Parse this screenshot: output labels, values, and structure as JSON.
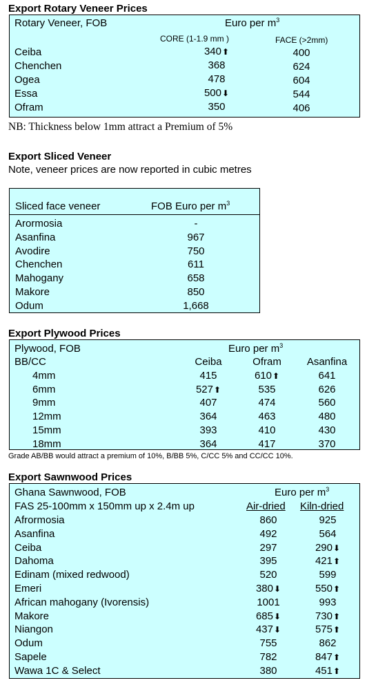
{
  "rotary": {
    "heading": "Export Rotary Veneer Prices",
    "label": "Rotary Veneer,  FOB",
    "unit_prefix": "Euro  per m",
    "unit_sup": "3",
    "col1": "CORE (1-1.9 mm )",
    "col2": "FACE (>2mm)",
    "rows": [
      {
        "name": "Ceiba",
        "core": "340",
        "core_arrow": "up",
        "face": "400"
      },
      {
        "name": "Chenchen",
        "core": "368",
        "core_arrow": "",
        "face": "624"
      },
      {
        "name": "Ogea",
        "core": "478",
        "core_arrow": "",
        "face": "604"
      },
      {
        "name": "Essa",
        "core": "500",
        "core_arrow": "down",
        "face": "544"
      },
      {
        "name": "Ofram",
        "core": "350",
        "core_arrow": "",
        "face": "406"
      }
    ],
    "note": "NB: Thickness below 1mm attract a Premium of 5%"
  },
  "sliced": {
    "heading": "Export Sliced Veneer",
    "subnote": "Note, veneer prices are now reported in cubic metres",
    "label": "Sliced face veneer",
    "unit_prefix": "FOB Euro per m",
    "unit_sup": "3",
    "rows": [
      {
        "name": "Arormosia",
        "price": "-"
      },
      {
        "name": "Asanfina",
        "price": "967"
      },
      {
        "name": "Avodire",
        "price": "750"
      },
      {
        "name": "Chenchen",
        "price": "611"
      },
      {
        "name": "Mahogany",
        "price": "658"
      },
      {
        "name": "Makore",
        "price": "850"
      },
      {
        "name": "Odum",
        "price": "1,668"
      }
    ]
  },
  "plywood": {
    "heading": "Export Plywood Prices",
    "label": "Plywood, FOB",
    "sub_label": "BB/CC",
    "unit_prefix": "Euro per m",
    "unit_sup": "3",
    "cols": [
      "Ceiba",
      "Ofram",
      "Asanfina"
    ],
    "rows": [
      {
        "size": "4mm",
        "v": [
          "415",
          "610",
          "641"
        ],
        "a": [
          "",
          "up",
          ""
        ]
      },
      {
        "size": "6mm",
        "v": [
          "527",
          "535",
          "626"
        ],
        "a": [
          "up",
          "",
          ""
        ]
      },
      {
        "size": "9mm",
        "v": [
          "407",
          "474",
          "560"
        ],
        "a": [
          "",
          "",
          ""
        ]
      },
      {
        "size": "12mm",
        "v": [
          "364",
          "463",
          "480"
        ],
        "a": [
          "",
          "",
          ""
        ]
      },
      {
        "size": "15mm",
        "v": [
          "393",
          "410",
          "430"
        ],
        "a": [
          "",
          "",
          ""
        ]
      },
      {
        "size": "18mm",
        "v": [
          "364",
          "417",
          "370"
        ],
        "a": [
          "",
          "",
          ""
        ]
      }
    ],
    "note": "Grade AB/BB would attract a premium of 10%, B/BB 5%, C/CC 5% and CC/CC 10%."
  },
  "sawn": {
    "heading": "Export Sawnwood Prices",
    "label": "Ghana Sawnwood, FOB",
    "spec": "FAS 25-100mm x 150mm up x 2.4m up",
    "unit_prefix": "Euro per m",
    "unit_sup": "3",
    "col1": "Air-dried",
    "col2": "Kiln-dried",
    "rows": [
      {
        "name": "Afrormosia",
        "air": "860",
        "air_a": "",
        "kiln": "925",
        "kiln_a": ""
      },
      {
        "name": "Asanfina",
        "air": "492",
        "air_a": "",
        "kiln": "564",
        "kiln_a": ""
      },
      {
        "name": "Ceiba",
        "air": "297",
        "air_a": "",
        "kiln": "290",
        "kiln_a": "down"
      },
      {
        "name": "Dahoma",
        "air": "395",
        "air_a": "",
        "kiln": "421",
        "kiln_a": "up"
      },
      {
        "name": "Edinam (mixed redwood)",
        "air": "520",
        "air_a": "",
        "kiln": "599",
        "kiln_a": ""
      },
      {
        "name": "Emeri",
        "air": "380",
        "air_a": "down",
        "kiln": "550",
        "kiln_a": "up"
      },
      {
        "name": "African mahogany (Ivorensis)",
        "air": "1001",
        "air_a": "",
        "kiln": "993",
        "kiln_a": ""
      },
      {
        "name": "Makore",
        "air": "685",
        "air_a": "down",
        "kiln": "730",
        "kiln_a": "up"
      },
      {
        "name": "Niangon",
        "air": "437",
        "air_a": "down",
        "kiln": "575",
        "kiln_a": "up"
      },
      {
        "name": "Odum",
        "air": "755",
        "air_a": "",
        "kiln": "862",
        "kiln_a": ""
      },
      {
        "name": "Sapele",
        "air": "782",
        "air_a": "",
        "kiln": "847",
        "kiln_a": "up"
      },
      {
        "name": "Wawa 1C & Select",
        "air": "380",
        "air_a": "",
        "kiln": "451",
        "kiln_a": "up"
      }
    ]
  },
  "icons": {
    "up": "up-arrow-icon",
    "down": "down-arrow-icon"
  }
}
